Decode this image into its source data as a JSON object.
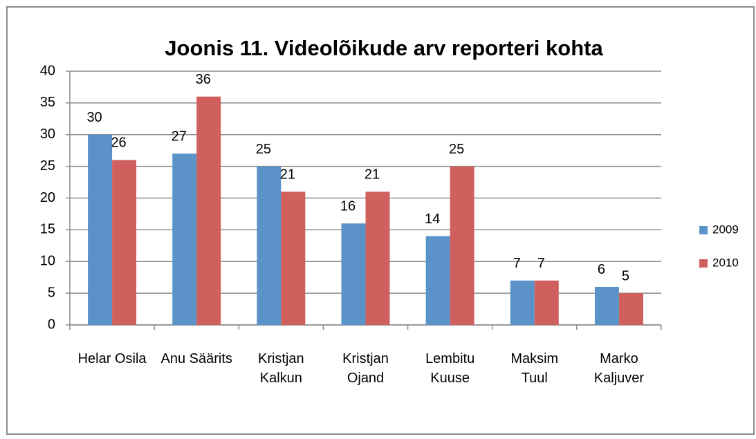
{
  "chart_data": {
    "type": "bar",
    "title": "Joonis 11. Videolõikude arv reporteri kohta",
    "categories": [
      "Helar Osila",
      "Anu Säärits",
      "Kristjan\nKalkun",
      "Kristjan\nOjand",
      "Lembitu\nKuuse",
      "Maksim\nTuul",
      "Marko\nKaljuver"
    ],
    "series": [
      {
        "name": "2009",
        "color": "#5b93c9",
        "values": [
          30,
          27,
          25,
          16,
          14,
          7,
          6
        ]
      },
      {
        "name": "2010",
        "color": "#d0605e",
        "values": [
          26,
          36,
          21,
          21,
          25,
          7,
          5
        ]
      }
    ],
    "ylim": [
      0,
      40
    ],
    "yticks": [
      0,
      5,
      10,
      15,
      20,
      25,
      30,
      35,
      40
    ],
    "grid": true,
    "legend": "right"
  }
}
